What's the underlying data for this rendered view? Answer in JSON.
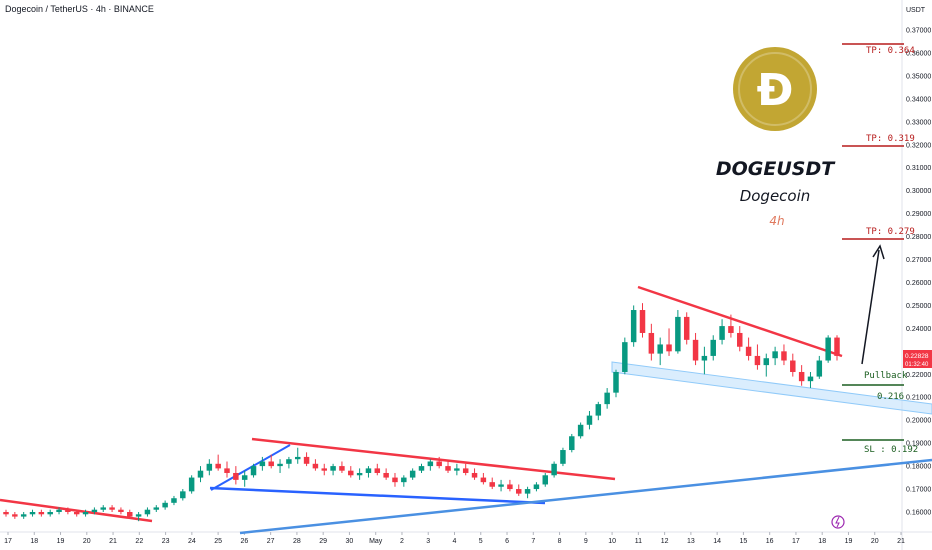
{
  "header": {
    "symbol_title": "Dogecoin / TetherUS · 4h · BINANCE",
    "currency": "USDT"
  },
  "overlay": {
    "pair": "DOGEUSDT",
    "name": "Dogecoin",
    "timeframe": "4h",
    "logo_letter": "Ɖ",
    "logo_color": "#c2a633"
  },
  "annotations": {
    "tp1_label": "TP: 0.364",
    "tp2_label": "TP: 0.319",
    "tp3_label": "TP: 0.279",
    "pullback_label": "Pullback",
    "pullback_value": "0.216",
    "sl_label": "SL : 0.192"
  },
  "price_tag": {
    "price": "0.22828",
    "countdown": "01:32:40",
    "color": "#f23645"
  },
  "colors": {
    "up": "#089981",
    "down": "#f23645",
    "resistance": "#f23645",
    "support": "#2962ff",
    "trend": "#4a90e2",
    "tp_line": "#b71c1c",
    "sl_line": "#1b5e20"
  },
  "chart_data": {
    "type": "candlestick",
    "ylim": [
      0.155,
      0.375
    ],
    "y_ticks": [
      "0.37000",
      "0.36000",
      "0.35000",
      "0.34000",
      "0.33000",
      "0.32000",
      "0.31000",
      "0.30000",
      "0.29000",
      "0.28000",
      "0.27000",
      "0.26000",
      "0.25000",
      "0.24000",
      "0.22000",
      "0.21000",
      "0.20000",
      "0.19000",
      "0.18000",
      "0.17000",
      "0.16000"
    ],
    "x_ticks": [
      "17",
      "18",
      "19",
      "20",
      "21",
      "22",
      "23",
      "24",
      "25",
      "26",
      "27",
      "28",
      "29",
      "30",
      "May",
      "2",
      "3",
      "4",
      "5",
      "6",
      "7",
      "8",
      "9",
      "10",
      "11",
      "12",
      "13",
      "14",
      "15",
      "16",
      "17",
      "18",
      "19",
      "20",
      "21"
    ],
    "levels": {
      "tp1": 0.364,
      "tp2": 0.319,
      "tp3": 0.279,
      "pullback": 0.216,
      "sl": 0.192
    },
    "candles": [
      [
        0.16,
        0.161,
        0.158,
        0.159
      ],
      [
        0.159,
        0.16,
        0.157,
        0.158
      ],
      [
        0.158,
        0.16,
        0.157,
        0.159
      ],
      [
        0.159,
        0.161,
        0.158,
        0.16
      ],
      [
        0.16,
        0.161,
        0.158,
        0.159
      ],
      [
        0.159,
        0.161,
        0.158,
        0.16
      ],
      [
        0.16,
        0.162,
        0.159,
        0.161
      ],
      [
        0.161,
        0.162,
        0.159,
        0.16
      ],
      [
        0.16,
        0.161,
        0.158,
        0.159
      ],
      [
        0.159,
        0.161,
        0.158,
        0.16
      ],
      [
        0.16,
        0.162,
        0.159,
        0.161
      ],
      [
        0.161,
        0.163,
        0.16,
        0.162
      ],
      [
        0.162,
        0.163,
        0.16,
        0.161
      ],
      [
        0.161,
        0.162,
        0.159,
        0.16
      ],
      [
        0.16,
        0.161,
        0.157,
        0.158
      ],
      [
        0.158,
        0.16,
        0.156,
        0.159
      ],
      [
        0.159,
        0.162,
        0.158,
        0.161
      ],
      [
        0.161,
        0.163,
        0.16,
        0.162
      ],
      [
        0.162,
        0.165,
        0.161,
        0.164
      ],
      [
        0.164,
        0.167,
        0.163,
        0.166
      ],
      [
        0.166,
        0.17,
        0.165,
        0.169
      ],
      [
        0.169,
        0.176,
        0.168,
        0.175
      ],
      [
        0.175,
        0.18,
        0.173,
        0.178
      ],
      [
        0.178,
        0.183,
        0.176,
        0.181
      ],
      [
        0.181,
        0.185,
        0.178,
        0.179
      ],
      [
        0.179,
        0.182,
        0.175,
        0.177
      ],
      [
        0.177,
        0.18,
        0.172,
        0.174
      ],
      [
        0.174,
        0.178,
        0.171,
        0.176
      ],
      [
        0.176,
        0.181,
        0.175,
        0.18
      ],
      [
        0.18,
        0.184,
        0.178,
        0.182
      ],
      [
        0.182,
        0.185,
        0.179,
        0.18
      ],
      [
        0.18,
        0.183,
        0.177,
        0.181
      ],
      [
        0.181,
        0.184,
        0.179,
        0.183
      ],
      [
        0.183,
        0.188,
        0.181,
        0.184
      ],
      [
        0.184,
        0.186,
        0.18,
        0.181
      ],
      [
        0.181,
        0.183,
        0.178,
        0.179
      ],
      [
        0.179,
        0.181,
        0.176,
        0.178
      ],
      [
        0.178,
        0.181,
        0.176,
        0.18
      ],
      [
        0.18,
        0.182,
        0.177,
        0.178
      ],
      [
        0.178,
        0.18,
        0.175,
        0.176
      ],
      [
        0.176,
        0.179,
        0.174,
        0.177
      ],
      [
        0.177,
        0.18,
        0.175,
        0.179
      ],
      [
        0.179,
        0.181,
        0.176,
        0.177
      ],
      [
        0.177,
        0.179,
        0.174,
        0.175
      ],
      [
        0.175,
        0.177,
        0.171,
        0.173
      ],
      [
        0.173,
        0.176,
        0.171,
        0.175
      ],
      [
        0.175,
        0.179,
        0.174,
        0.178
      ],
      [
        0.178,
        0.181,
        0.177,
        0.18
      ],
      [
        0.18,
        0.183,
        0.178,
        0.182
      ],
      [
        0.182,
        0.184,
        0.179,
        0.18
      ],
      [
        0.18,
        0.182,
        0.177,
        0.178
      ],
      [
        0.178,
        0.181,
        0.176,
        0.179
      ],
      [
        0.179,
        0.181,
        0.176,
        0.177
      ],
      [
        0.177,
        0.179,
        0.174,
        0.175
      ],
      [
        0.175,
        0.177,
        0.172,
        0.173
      ],
      [
        0.173,
        0.175,
        0.17,
        0.171
      ],
      [
        0.171,
        0.174,
        0.169,
        0.172
      ],
      [
        0.172,
        0.174,
        0.169,
        0.17
      ],
      [
        0.17,
        0.172,
        0.167,
        0.168
      ],
      [
        0.168,
        0.171,
        0.166,
        0.17
      ],
      [
        0.17,
        0.173,
        0.169,
        0.172
      ],
      [
        0.172,
        0.177,
        0.171,
        0.176
      ],
      [
        0.176,
        0.182,
        0.175,
        0.181
      ],
      [
        0.181,
        0.188,
        0.18,
        0.187
      ],
      [
        0.187,
        0.194,
        0.186,
        0.193
      ],
      [
        0.193,
        0.199,
        0.192,
        0.198
      ],
      [
        0.198,
        0.204,
        0.196,
        0.202
      ],
      [
        0.202,
        0.208,
        0.2,
        0.207
      ],
      [
        0.207,
        0.214,
        0.205,
        0.212
      ],
      [
        0.212,
        0.222,
        0.21,
        0.221
      ],
      [
        0.221,
        0.236,
        0.22,
        0.234
      ],
      [
        0.234,
        0.25,
        0.232,
        0.248
      ],
      [
        0.248,
        0.251,
        0.236,
        0.238
      ],
      [
        0.238,
        0.242,
        0.226,
        0.229
      ],
      [
        0.229,
        0.236,
        0.224,
        0.233
      ],
      [
        0.233,
        0.24,
        0.228,
        0.23
      ],
      [
        0.23,
        0.248,
        0.229,
        0.245
      ],
      [
        0.245,
        0.247,
        0.233,
        0.235
      ],
      [
        0.235,
        0.238,
        0.224,
        0.226
      ],
      [
        0.226,
        0.232,
        0.22,
        0.228
      ],
      [
        0.228,
        0.237,
        0.226,
        0.235
      ],
      [
        0.235,
        0.244,
        0.233,
        0.241
      ],
      [
        0.241,
        0.246,
        0.236,
        0.238
      ],
      [
        0.238,
        0.241,
        0.23,
        0.232
      ],
      [
        0.232,
        0.236,
        0.226,
        0.228
      ],
      [
        0.228,
        0.233,
        0.222,
        0.224
      ],
      [
        0.224,
        0.229,
        0.219,
        0.227
      ],
      [
        0.227,
        0.232,
        0.224,
        0.23
      ],
      [
        0.23,
        0.233,
        0.224,
        0.226
      ],
      [
        0.226,
        0.229,
        0.219,
        0.221
      ],
      [
        0.221,
        0.224,
        0.215,
        0.217
      ],
      [
        0.217,
        0.221,
        0.214,
        0.219
      ],
      [
        0.219,
        0.228,
        0.218,
        0.226
      ],
      [
        0.226,
        0.237,
        0.225,
        0.236
      ],
      [
        0.236,
        0.237,
        0.226,
        0.228
      ]
    ]
  }
}
